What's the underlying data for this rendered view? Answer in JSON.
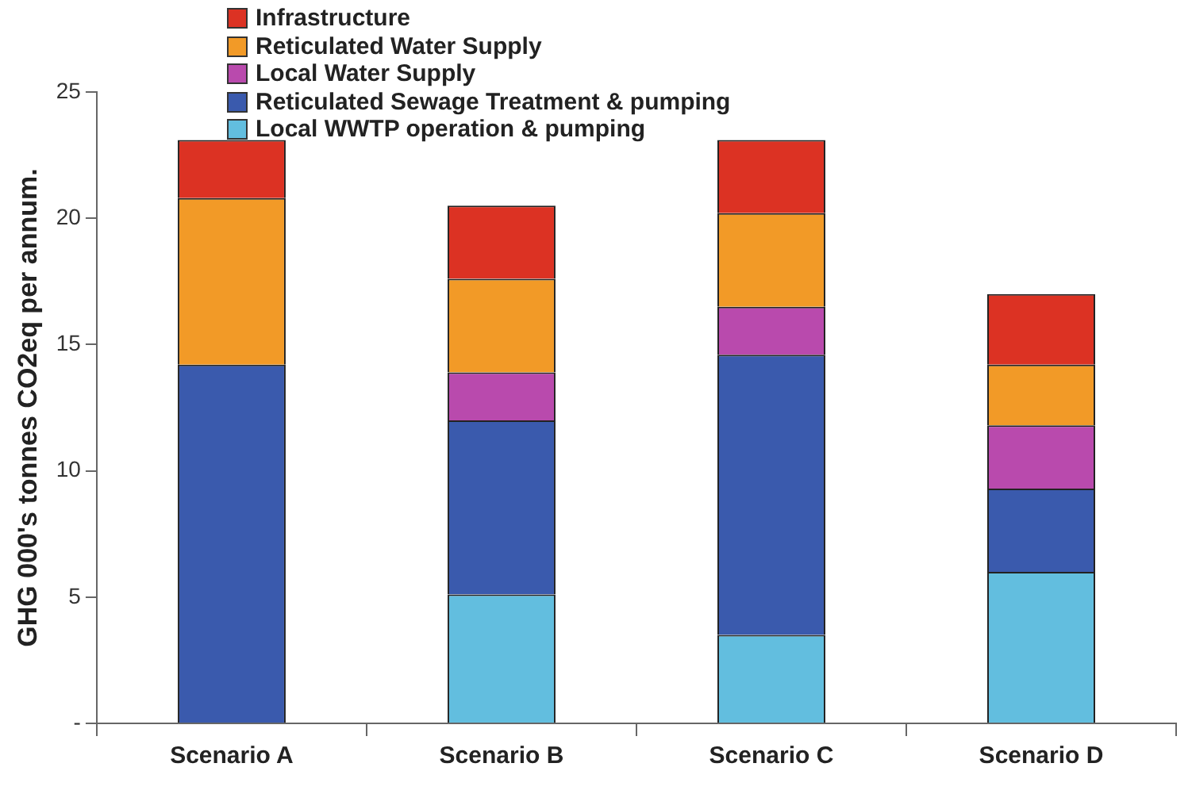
{
  "chart_data": {
    "type": "bar",
    "stacked": true,
    "ylabel": "GHG 000's tonnes CO2eq per annum.",
    "categories": [
      "Scenario A",
      "Scenario B",
      "Scenario C",
      "Scenario D"
    ],
    "series": [
      {
        "name": "Local WWTP operation & pumping",
        "color": "#62bedf",
        "values": [
          0,
          5.1,
          3.5,
          6.0
        ]
      },
      {
        "name": "Reticulated Sewage Treatment & pumping",
        "color": "#3a5aad",
        "values": [
          14.2,
          6.9,
          11.1,
          3.3
        ]
      },
      {
        "name": "Local Water Supply",
        "color": "#b94aad",
        "values": [
          0,
          1.9,
          1.9,
          2.5
        ]
      },
      {
        "name": "Reticulated Water Supply",
        "color": "#f29a27",
        "values": [
          6.6,
          3.7,
          3.7,
          2.4
        ]
      },
      {
        "name": "Infrastructure",
        "color": "#dc3223",
        "values": [
          2.3,
          2.9,
          2.9,
          2.8
        ]
      }
    ],
    "ylim": [
      0,
      25
    ],
    "yticks": [
      {
        "value": 0,
        "label": "-"
      },
      5,
      10,
      15,
      20,
      25
    ],
    "grid": false,
    "legend": "top left"
  }
}
